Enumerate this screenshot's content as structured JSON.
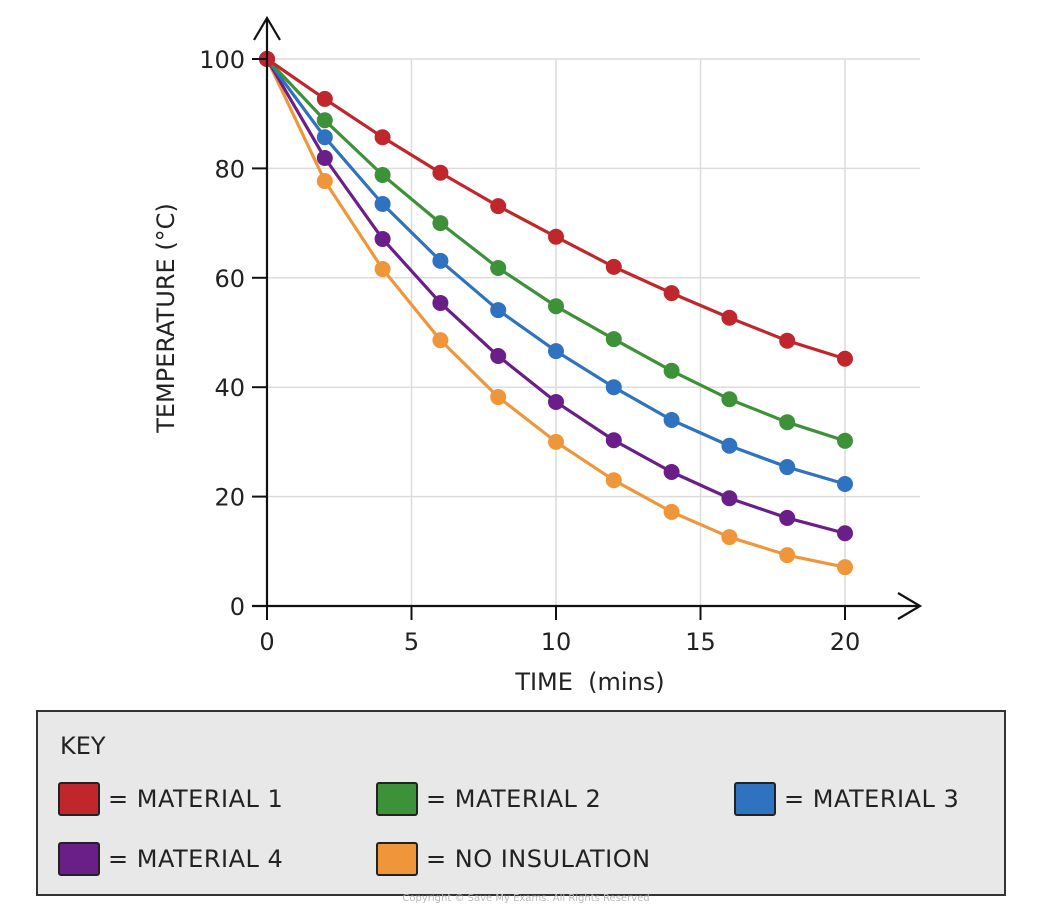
{
  "chart_data": {
    "type": "line",
    "title": "",
    "xlabel": "TIME  (mins)",
    "ylabel": "TEMPERATURE (°C)",
    "xlim": [
      0,
      20
    ],
    "ylim": [
      0,
      100
    ],
    "x_ticks": [
      0,
      5,
      10,
      15,
      20
    ],
    "y_ticks": [
      0,
      20,
      40,
      60,
      80,
      100
    ],
    "grid": true,
    "legend_placement": "bottom",
    "x": [
      0,
      2,
      4,
      6,
      8,
      10,
      12,
      14,
      16,
      18,
      20
    ],
    "series": [
      {
        "name": "MATERIAL 1",
        "color": "#c0272d",
        "values": [
          100,
          92.7,
          85.7,
          79.2,
          73.1,
          67.5,
          62.0,
          57.2,
          52.7,
          48.5,
          45.2
        ]
      },
      {
        "name": "MATERIAL 2",
        "color": "#3d9139",
        "values": [
          100,
          88.8,
          78.8,
          70.0,
          61.8,
          54.8,
          48.8,
          43.0,
          37.8,
          33.6,
          30.2
        ]
      },
      {
        "name": "MATERIAL 3",
        "color": "#2f72bf",
        "values": [
          100,
          85.7,
          73.5,
          63.1,
          54.1,
          46.6,
          40.0,
          34.0,
          29.3,
          25.4,
          22.3
        ]
      },
      {
        "name": "MATERIAL 4",
        "color": "#6a1f88",
        "values": [
          100,
          81.9,
          67.1,
          55.4,
          45.7,
          37.3,
          30.3,
          24.5,
          19.7,
          16.1,
          13.3
        ]
      },
      {
        "name": "NO INSULATION",
        "color": "#f0963a",
        "values": [
          100,
          77.7,
          61.6,
          48.6,
          38.2,
          30.0,
          23.0,
          17.2,
          12.6,
          9.3,
          7.1
        ]
      }
    ]
  },
  "key": {
    "title": "KEY",
    "items": [
      {
        "label": "= MATERIAL 1",
        "color": "#c0272d"
      },
      {
        "label": "= MATERIAL 2",
        "color": "#3d9139"
      },
      {
        "label": "= MATERIAL 3",
        "color": "#2f72bf"
      },
      {
        "label": "= MATERIAL 4",
        "color": "#6a1f88"
      },
      {
        "label": "= NO INSULATION",
        "color": "#f0963a"
      }
    ]
  },
  "footer": {
    "copyright": "Copyright © Save My Exams. All Rights Reserved"
  }
}
